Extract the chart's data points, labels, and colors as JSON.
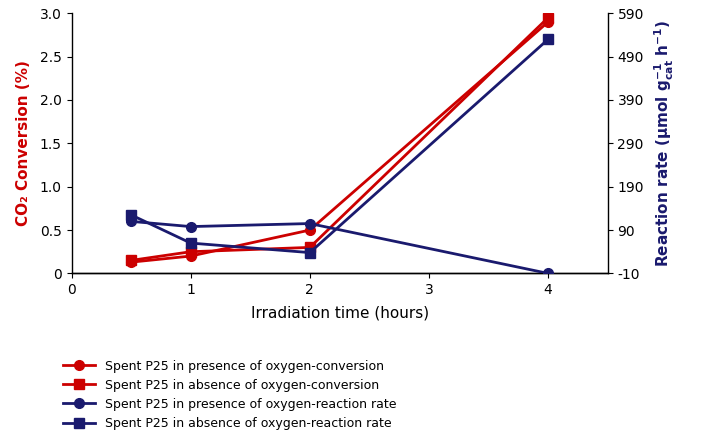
{
  "x": [
    0.5,
    1,
    2,
    4
  ],
  "conv_with_o2": [
    0.13,
    0.2,
    0.5,
    2.9
  ],
  "conv_without_o2": [
    0.15,
    0.25,
    0.3,
    2.95
  ],
  "rate_with_o2": [
    110,
    98,
    105,
    -10
  ],
  "rate_without_o2": [
    125,
    60,
    38,
    530
  ],
  "left_ylim": [
    0,
    3
  ],
  "right_ylim": [
    -10,
    590
  ],
  "right_yticks": [
    -10,
    90,
    190,
    290,
    390,
    490,
    590
  ],
  "left_yticks": [
    0,
    0.5,
    1.0,
    1.5,
    2.0,
    2.5,
    3.0
  ],
  "xlim": [
    0,
    4.5
  ],
  "xticks": [
    0,
    1,
    2,
    3,
    4
  ],
  "xlabel": "Irradiation time (hours)",
  "ylabel_left": "CO₂ Conversion (%)",
  "color_red": "#cc0000",
  "color_navy": "#1a1a6e",
  "legend": [
    "Spent P25 in presence of oxygen-conversion",
    "Spent P25 in absence of oxygen-conversion",
    "Spent P25 in presence of oxygen-reaction rate",
    "Spent P25 in absence of oxygen-reaction rate"
  ],
  "markersize": 7,
  "linewidth": 2.0
}
